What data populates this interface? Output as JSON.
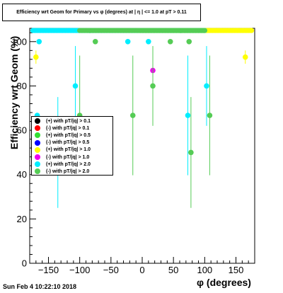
{
  "title": "Efficiency wrt Geom for Primary vs φ (degrees) at | η | <= 1.0 at pT > 0.11",
  "footer": "Sun Feb  4 10:22:10 2018",
  "chart_data": {
    "type": "scatter",
    "xlabel": "φ (degrees)",
    "ylabel": "Efficiency wrt Geom (%)",
    "xlim": [
      -180,
      180
    ],
    "ylim": [
      0,
      106
    ],
    "xticks": [
      -150,
      -100,
      -50,
      0,
      50,
      100,
      150
    ],
    "yticks": [
      0,
      20,
      40,
      60,
      80,
      100
    ],
    "grid": false,
    "legend_position": "left",
    "series": [
      {
        "name": "(+) with pT/|q| > 0.1",
        "color": "#000000",
        "points": []
      },
      {
        "name": "(-) with pT/|q| > 0.1",
        "color": "#ff0000",
        "points": []
      },
      {
        "name": "(+) with pT/|q| > 0.5",
        "color": "#33dd33",
        "points": []
      },
      {
        "name": "(-) with pT/|q| > 0.5",
        "color": "#0000ff",
        "points": []
      },
      {
        "name": "(+) with pT/|q| > 1.0",
        "color": "#ffff00",
        "points": [
          [
            -170,
            93,
            3
          ],
          [
            165,
            93,
            3
          ]
        ],
        "band": [
          -5,
          175,
          105
        ]
      },
      {
        "name": "(-) with pT/|q| > 1.0",
        "color": "#ee00ee",
        "points": [
          [
            17,
            87,
            3
          ]
        ]
      },
      {
        "name": "(+) with pT/|q| > 2.0",
        "color": "#00eeff",
        "points": [
          [
            -165,
            100,
            0
          ],
          [
            -168,
            66.7,
            0
          ],
          [
            -135,
            50,
            25
          ],
          [
            -107,
            80,
            18
          ],
          [
            -23,
            100,
            0
          ],
          [
            10,
            100,
            0
          ],
          [
            73,
            66.7,
            27
          ],
          [
            103,
            80,
            18
          ]
        ],
        "band": [
          -175,
          100,
          105
        ]
      },
      {
        "name": "(-) with pT/|q| > 2.0",
        "color": "#55cc55",
        "points": [
          [
            -100,
            66.7,
            27
          ],
          [
            -75,
            100,
            0
          ],
          [
            -15,
            66.7,
            27
          ],
          [
            17,
            80,
            18
          ],
          [
            45,
            100,
            0
          ],
          [
            75,
            100,
            0
          ],
          [
            78,
            50,
            25
          ],
          [
            108,
            66.7,
            27
          ]
        ],
        "band": [
          -100,
          100,
          105
        ]
      }
    ]
  }
}
